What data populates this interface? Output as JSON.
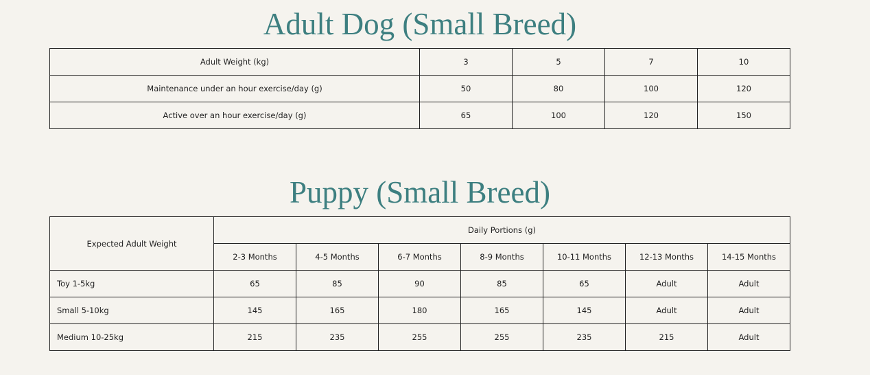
{
  "sections": [
    {
      "title": "Adult Dog (Small Breed)",
      "table": {
        "rows": [
          [
            "Adult Weight (kg)",
            3,
            5,
            7,
            10
          ],
          [
            "Maintenance under an hour exercise/day (g)",
            50,
            80,
            100,
            120
          ],
          [
            "Active over an hour exercise/day (g)",
            65,
            100,
            120,
            150
          ]
        ]
      }
    },
    {
      "title": "Puppy (Small Breed)",
      "table": {
        "corner": "Expected Adult Weight",
        "group_header": "Daily Portions (g)",
        "columns": [
          "2-3 Months",
          "4-5 Months",
          "6-7 Months",
          "8-9 Months",
          "10-11 Months",
          "12-13 Months",
          "14-15 Months"
        ],
        "rows": [
          [
            "Toy 1-5kg",
            65,
            85,
            90,
            85,
            65,
            "Adult",
            "Adult"
          ],
          [
            "Small 5-10kg",
            145,
            165,
            180,
            165,
            145,
            "Adult",
            "Adult"
          ],
          [
            "Medium 10-25kg",
            215,
            235,
            255,
            255,
            235,
            215,
            "Adult"
          ]
        ]
      }
    }
  ]
}
